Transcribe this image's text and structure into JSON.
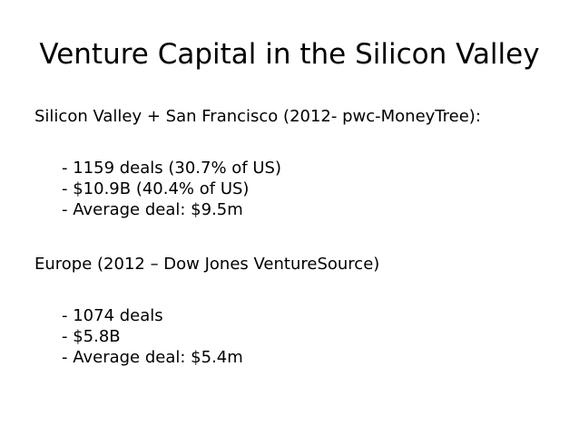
{
  "title": "Venture Capital in the Silicon Valley",
  "sections": [
    {
      "heading": "Silicon Valley + San Francisco (2012- pwc-MoneyTree):",
      "items": [
        "- 1159 deals (30.7% of US)",
        "- $10.9B (40.4% of US)",
        "- Average deal: $9.5m"
      ]
    },
    {
      "heading": "Europe (2012 – Dow Jones VentureSource)",
      "items": [
        "- 1074 deals",
        "- $5.8B",
        "- Average deal: $5.4m"
      ]
    }
  ]
}
